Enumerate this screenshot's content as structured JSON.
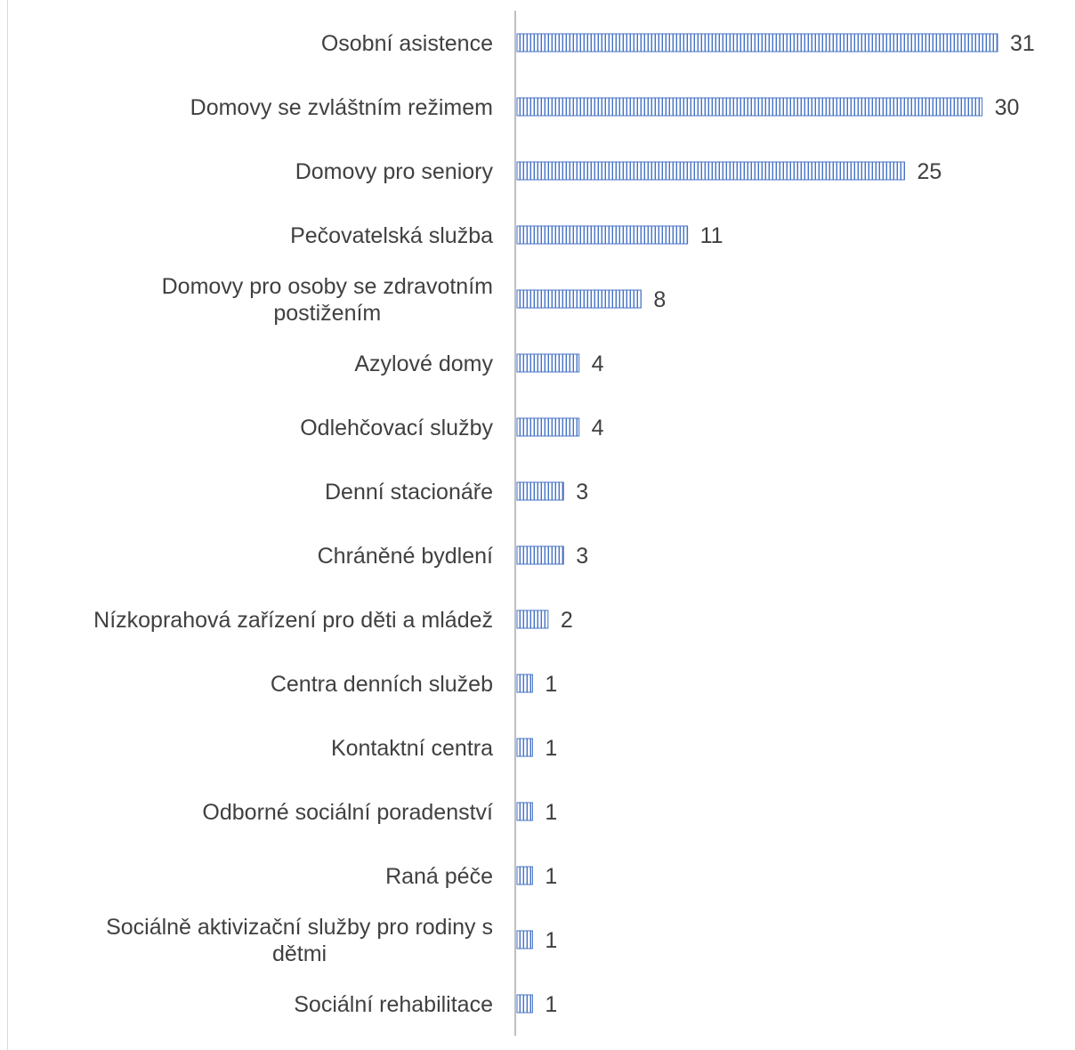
{
  "chart_data": {
    "type": "bar",
    "orientation": "horizontal",
    "categories": [
      "Osobní asistence",
      "Domovy se zvláštním režimem",
      "Domovy pro seniory",
      "Pečovatelská služba",
      "Domovy pro osoby se zdravotním postižením",
      "Azylové domy",
      "Odlehčovací služby",
      "Denní stacionáře",
      "Chráněné bydlení",
      "Nízkoprahová zařízení pro děti a mládež",
      "Centra denních služeb",
      "Kontaktní centra",
      "Odborné sociální poradenství",
      "Raná péče",
      "Sociálně aktivizační služby pro rodiny s dětmi",
      "Sociální rehabilitace"
    ],
    "category_lines": [
      [
        "Osobní asistence"
      ],
      [
        "Domovy se zvláštním režimem"
      ],
      [
        "Domovy pro seniory"
      ],
      [
        "Pečovatelská služba"
      ],
      [
        "Domovy pro osoby se zdravotním",
        "postižením"
      ],
      [
        "Azylové domy"
      ],
      [
        "Odlehčovací služby"
      ],
      [
        "Denní stacionáře"
      ],
      [
        "Chráněné bydlení"
      ],
      [
        "Nízkoprahová zařízení pro děti a mládež"
      ],
      [
        "Centra denních služeb"
      ],
      [
        "Kontaktní centra"
      ],
      [
        "Odborné sociální poradenství"
      ],
      [
        "Raná péče"
      ],
      [
        "Sociálně aktivizační služby pro rodiny s",
        "dětmi"
      ],
      [
        "Sociální rehabilitace"
      ]
    ],
    "values": [
      31,
      30,
      25,
      11,
      8,
      4,
      4,
      3,
      3,
      2,
      1,
      1,
      1,
      1,
      1,
      1
    ],
    "xlim": [
      0,
      31
    ],
    "grid": false,
    "legend": "none",
    "data_labels": true,
    "bar_color": "#4472c4",
    "bar_stripe_color": "#ffffff",
    "axis_color": "#bfbfbf",
    "text_color": "#404040"
  }
}
